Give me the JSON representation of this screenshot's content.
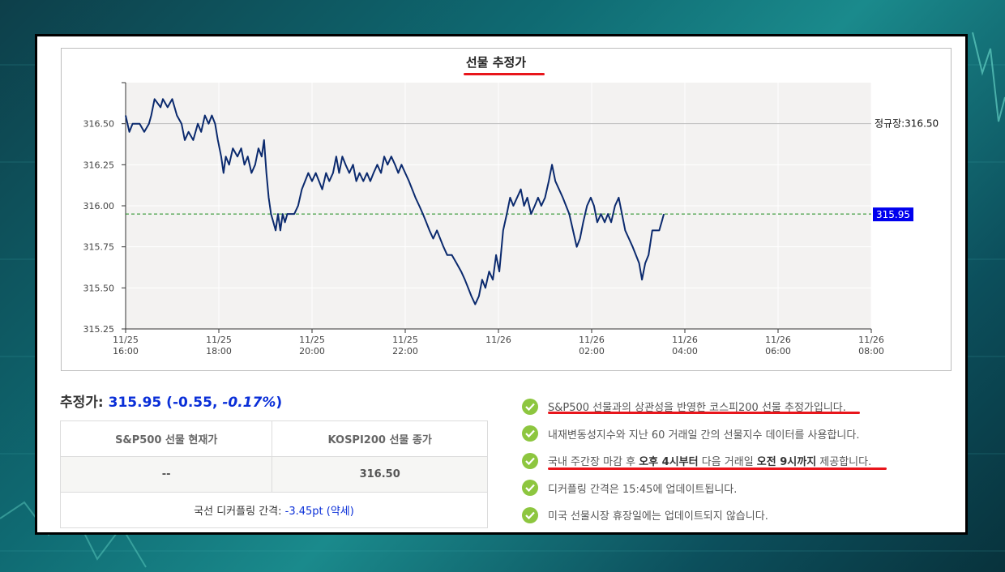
{
  "chart_data": {
    "type": "line",
    "title": "선물 추정가",
    "xlabel": "",
    "ylabel": "",
    "x_ticks": [
      {
        "date": "11/25",
        "time": "16:00",
        "h": 0
      },
      {
        "date": "11/25",
        "time": "18:00",
        "h": 2
      },
      {
        "date": "11/25",
        "time": "20:00",
        "h": 4
      },
      {
        "date": "11/25",
        "time": "22:00",
        "h": 6
      },
      {
        "date": "11/26",
        "time": "",
        "h": 8
      },
      {
        "date": "11/26",
        "time": "02:00",
        "h": 10
      },
      {
        "date": "11/26",
        "time": "04:00",
        "h": 12
      },
      {
        "date": "11/26",
        "time": "06:00",
        "h": 14
      },
      {
        "date": "11/26",
        "time": "08:00",
        "h": 16
      }
    ],
    "y_ticks": [
      "316.50",
      "316.25",
      "316.00",
      "315.75",
      "315.50",
      "315.25"
    ],
    "ylim": [
      315.25,
      316.75
    ],
    "grid": true,
    "series": [
      {
        "color": "#0b2a6e",
        "points": [
          [
            0.0,
            316.55
          ],
          [
            0.08,
            316.45
          ],
          [
            0.15,
            316.5
          ],
          [
            0.3,
            316.5
          ],
          [
            0.4,
            316.45
          ],
          [
            0.5,
            316.5
          ],
          [
            0.55,
            316.55
          ],
          [
            0.62,
            316.65
          ],
          [
            0.75,
            316.6
          ],
          [
            0.8,
            316.65
          ],
          [
            0.9,
            316.6
          ],
          [
            1.0,
            316.65
          ],
          [
            1.1,
            316.55
          ],
          [
            1.2,
            316.5
          ],
          [
            1.27,
            316.4
          ],
          [
            1.35,
            316.45
          ],
          [
            1.45,
            316.4
          ],
          [
            1.55,
            316.5
          ],
          [
            1.62,
            316.45
          ],
          [
            1.7,
            316.55
          ],
          [
            1.78,
            316.5
          ],
          [
            1.85,
            316.55
          ],
          [
            1.92,
            316.5
          ],
          [
            1.98,
            316.4
          ],
          [
            2.05,
            316.3
          ],
          [
            2.1,
            316.2
          ],
          [
            2.15,
            316.3
          ],
          [
            2.22,
            316.25
          ],
          [
            2.3,
            316.35
          ],
          [
            2.4,
            316.3
          ],
          [
            2.48,
            316.35
          ],
          [
            2.55,
            316.25
          ],
          [
            2.62,
            316.3
          ],
          [
            2.7,
            316.2
          ],
          [
            2.78,
            316.25
          ],
          [
            2.85,
            316.35
          ],
          [
            2.92,
            316.3
          ],
          [
            2.97,
            316.4
          ],
          [
            3.02,
            316.2
          ],
          [
            3.07,
            316.05
          ],
          [
            3.12,
            315.95
          ],
          [
            3.17,
            315.9
          ],
          [
            3.22,
            315.85
          ],
          [
            3.27,
            315.95
          ],
          [
            3.32,
            315.85
          ],
          [
            3.37,
            315.95
          ],
          [
            3.42,
            315.9
          ],
          [
            3.47,
            315.95
          ],
          [
            3.55,
            315.95
          ],
          [
            3.62,
            315.95
          ],
          [
            3.7,
            316.0
          ],
          [
            3.78,
            316.1
          ],
          [
            3.85,
            316.15
          ],
          [
            3.92,
            316.2
          ],
          [
            4.0,
            316.15
          ],
          [
            4.08,
            316.2
          ],
          [
            4.15,
            316.15
          ],
          [
            4.22,
            316.1
          ],
          [
            4.3,
            316.2
          ],
          [
            4.37,
            316.15
          ],
          [
            4.45,
            316.2
          ],
          [
            4.52,
            316.3
          ],
          [
            4.58,
            316.2
          ],
          [
            4.65,
            316.3
          ],
          [
            4.72,
            316.25
          ],
          [
            4.8,
            316.2
          ],
          [
            4.88,
            316.25
          ],
          [
            4.95,
            316.15
          ],
          [
            5.02,
            316.2
          ],
          [
            5.1,
            316.15
          ],
          [
            5.18,
            316.2
          ],
          [
            5.25,
            316.15
          ],
          [
            5.32,
            316.2
          ],
          [
            5.4,
            316.25
          ],
          [
            5.48,
            316.2
          ],
          [
            5.55,
            316.3
          ],
          [
            5.62,
            316.25
          ],
          [
            5.7,
            316.3
          ],
          [
            5.78,
            316.25
          ],
          [
            5.85,
            316.2
          ],
          [
            5.92,
            316.25
          ],
          [
            6.0,
            316.2
          ],
          [
            6.08,
            316.15
          ],
          [
            6.15,
            316.1
          ],
          [
            6.22,
            316.05
          ],
          [
            6.3,
            316.0
          ],
          [
            6.38,
            315.95
          ],
          [
            6.45,
            315.9
          ],
          [
            6.52,
            315.85
          ],
          [
            6.6,
            315.8
          ],
          [
            6.68,
            315.85
          ],
          [
            6.75,
            315.8
          ],
          [
            6.82,
            315.75
          ],
          [
            6.9,
            315.7
          ],
          [
            7.0,
            315.7
          ],
          [
            7.1,
            315.65
          ],
          [
            7.2,
            315.6
          ],
          [
            7.28,
            315.55
          ],
          [
            7.35,
            315.5
          ],
          [
            7.42,
            315.45
          ],
          [
            7.5,
            315.4
          ],
          [
            7.58,
            315.45
          ],
          [
            7.65,
            315.55
          ],
          [
            7.72,
            315.5
          ],
          [
            7.8,
            315.6
          ],
          [
            7.88,
            315.55
          ],
          [
            7.95,
            315.7
          ],
          [
            8.02,
            315.6
          ],
          [
            8.1,
            315.85
          ],
          [
            8.18,
            315.95
          ],
          [
            8.25,
            316.05
          ],
          [
            8.32,
            316.0
          ],
          [
            8.4,
            316.05
          ],
          [
            8.48,
            316.1
          ],
          [
            8.55,
            316.0
          ],
          [
            8.62,
            316.05
          ],
          [
            8.7,
            315.95
          ],
          [
            8.78,
            316.0
          ],
          [
            8.85,
            316.05
          ],
          [
            8.92,
            316.0
          ],
          [
            9.0,
            316.05
          ],
          [
            9.08,
            316.15
          ],
          [
            9.15,
            316.25
          ],
          [
            9.22,
            316.15
          ],
          [
            9.3,
            316.1
          ],
          [
            9.38,
            316.05
          ],
          [
            9.45,
            316.0
          ],
          [
            9.52,
            315.95
          ],
          [
            9.6,
            315.85
          ],
          [
            9.68,
            315.75
          ],
          [
            9.75,
            315.8
          ],
          [
            9.82,
            315.9
          ],
          [
            9.9,
            316.0
          ],
          [
            9.98,
            316.05
          ],
          [
            10.05,
            316.0
          ],
          [
            10.12,
            315.9
          ],
          [
            10.2,
            315.95
          ],
          [
            10.28,
            315.9
          ],
          [
            10.35,
            315.95
          ],
          [
            10.42,
            315.9
          ],
          [
            10.5,
            316.0
          ],
          [
            10.58,
            316.05
          ],
          [
            10.65,
            315.95
          ],
          [
            10.72,
            315.85
          ],
          [
            10.8,
            315.8
          ],
          [
            10.88,
            315.75
          ],
          [
            10.95,
            315.7
          ],
          [
            11.02,
            315.65
          ],
          [
            11.08,
            315.55
          ],
          [
            11.15,
            315.65
          ],
          [
            11.22,
            315.7
          ],
          [
            11.3,
            315.85
          ],
          [
            11.38,
            315.85
          ],
          [
            11.45,
            315.85
          ],
          [
            11.5,
            315.9
          ],
          [
            11.55,
            315.95
          ]
        ]
      }
    ],
    "reference_lines": [
      {
        "value": 316.5,
        "label": "정규장:316.50",
        "color": "#bbbbbb",
        "style": "solid"
      },
      {
        "value": 315.95,
        "label": "315.95",
        "color": "#1a8a1a",
        "style": "dashed",
        "label_bg": "#0000ee"
      }
    ]
  },
  "summary": {
    "label": "추정가: ",
    "value": "315.95",
    "change_open": " (-0.55, ",
    "change_pct": "-0.17%",
    "change_close": ")"
  },
  "table": {
    "headers": [
      "S&P500 선물 현재가",
      "KOSPI200 선물 종가"
    ],
    "values": [
      "--",
      "316.50"
    ],
    "basis_label": "국선 디커플링 간격: ",
    "basis_value": "-3.45pt (약세)"
  },
  "notes": [
    {
      "text": "S&P500 선물과의 상관성을 반영한 코스피200 선물 추정가입니다."
    },
    {
      "text": "내재변동성지수와 지난 60 거래일 간의 선물지수 데이터를 사용합니다."
    },
    {
      "parts": [
        "국내 주간장 마감 후 ",
        "오후 4시부터",
        " 다음 거래일 ",
        "오전 9시까지",
        " 제공합니다."
      ]
    },
    {
      "text": "디커플링 간격은 15:45에 업데이트됩니다."
    },
    {
      "text": "미국 선물시장 휴장일에는 업데이트되지 않습니다."
    }
  ],
  "colors": {
    "accent_blue": "#0a2fd8",
    "check_green": "#8dc63f",
    "highlight_red": "#e8151b",
    "line_navy": "#0b2a6e"
  }
}
